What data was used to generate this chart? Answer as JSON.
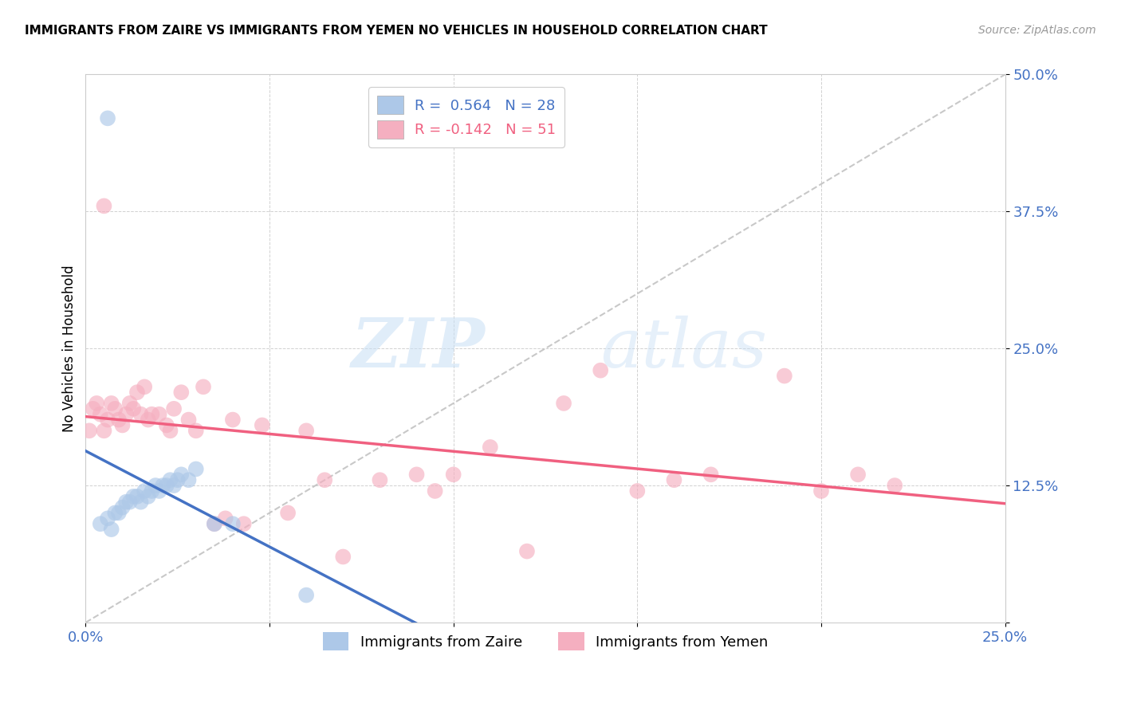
{
  "title": "IMMIGRANTS FROM ZAIRE VS IMMIGRANTS FROM YEMEN NO VEHICLES IN HOUSEHOLD CORRELATION CHART",
  "source": "Source: ZipAtlas.com",
  "ylabel": "No Vehicles in Household",
  "xlim": [
    0.0,
    0.25
  ],
  "ylim": [
    0.0,
    0.5
  ],
  "xticks": [
    0.0,
    0.05,
    0.1,
    0.15,
    0.2,
    0.25
  ],
  "yticks": [
    0.0,
    0.125,
    0.25,
    0.375,
    0.5
  ],
  "xtick_labels": [
    "0.0%",
    "",
    "",
    "",
    "",
    "25.0%"
  ],
  "ytick_labels": [
    "",
    "12.5%",
    "25.0%",
    "37.5%",
    "50.0%"
  ],
  "r_zaire": 0.564,
  "n_zaire": 28,
  "r_yemen": -0.142,
  "n_yemen": 51,
  "color_zaire": "#adc8e8",
  "color_zaire_line": "#4472c4",
  "color_yemen": "#f5afc0",
  "color_yemen_line": "#f06080",
  "legend_label_zaire": "Immigrants from Zaire",
  "legend_label_yemen": "Immigrants from Yemen",
  "watermark_zip": "ZIP",
  "watermark_atlas": "atlas",
  "background_color": "#ffffff",
  "grid_color": "#cccccc",
  "zaire_x": [
    0.004,
    0.006,
    0.007,
    0.008,
    0.009,
    0.01,
    0.011,
    0.012,
    0.013,
    0.014,
    0.015,
    0.016,
    0.017,
    0.018,
    0.019,
    0.02,
    0.021,
    0.022,
    0.023,
    0.024,
    0.025,
    0.026,
    0.028,
    0.03,
    0.035,
    0.04,
    0.06,
    0.006
  ],
  "zaire_y": [
    0.09,
    0.095,
    0.085,
    0.1,
    0.1,
    0.105,
    0.11,
    0.11,
    0.115,
    0.115,
    0.11,
    0.12,
    0.115,
    0.12,
    0.125,
    0.12,
    0.125,
    0.125,
    0.13,
    0.125,
    0.13,
    0.135,
    0.13,
    0.14,
    0.09,
    0.09,
    0.025,
    0.46
  ],
  "yemen_x": [
    0.001,
    0.002,
    0.003,
    0.004,
    0.005,
    0.005,
    0.006,
    0.007,
    0.008,
    0.009,
    0.01,
    0.011,
    0.012,
    0.013,
    0.014,
    0.015,
    0.016,
    0.017,
    0.018,
    0.02,
    0.022,
    0.023,
    0.024,
    0.026,
    0.028,
    0.03,
    0.032,
    0.035,
    0.038,
    0.04,
    0.043,
    0.048,
    0.055,
    0.06,
    0.065,
    0.07,
    0.08,
    0.09,
    0.095,
    0.1,
    0.11,
    0.12,
    0.13,
    0.14,
    0.15,
    0.16,
    0.17,
    0.19,
    0.2,
    0.21,
    0.22
  ],
  "yemen_y": [
    0.175,
    0.195,
    0.2,
    0.19,
    0.175,
    0.38,
    0.185,
    0.2,
    0.195,
    0.185,
    0.18,
    0.19,
    0.2,
    0.195,
    0.21,
    0.19,
    0.215,
    0.185,
    0.19,
    0.19,
    0.18,
    0.175,
    0.195,
    0.21,
    0.185,
    0.175,
    0.215,
    0.09,
    0.095,
    0.185,
    0.09,
    0.18,
    0.1,
    0.175,
    0.13,
    0.06,
    0.13,
    0.135,
    0.12,
    0.135,
    0.16,
    0.065,
    0.2,
    0.23,
    0.12,
    0.13,
    0.135,
    0.225,
    0.12,
    0.135,
    0.125
  ],
  "diag_line_x": [
    0.0,
    0.25
  ],
  "diag_line_y": [
    0.0,
    0.5
  ]
}
